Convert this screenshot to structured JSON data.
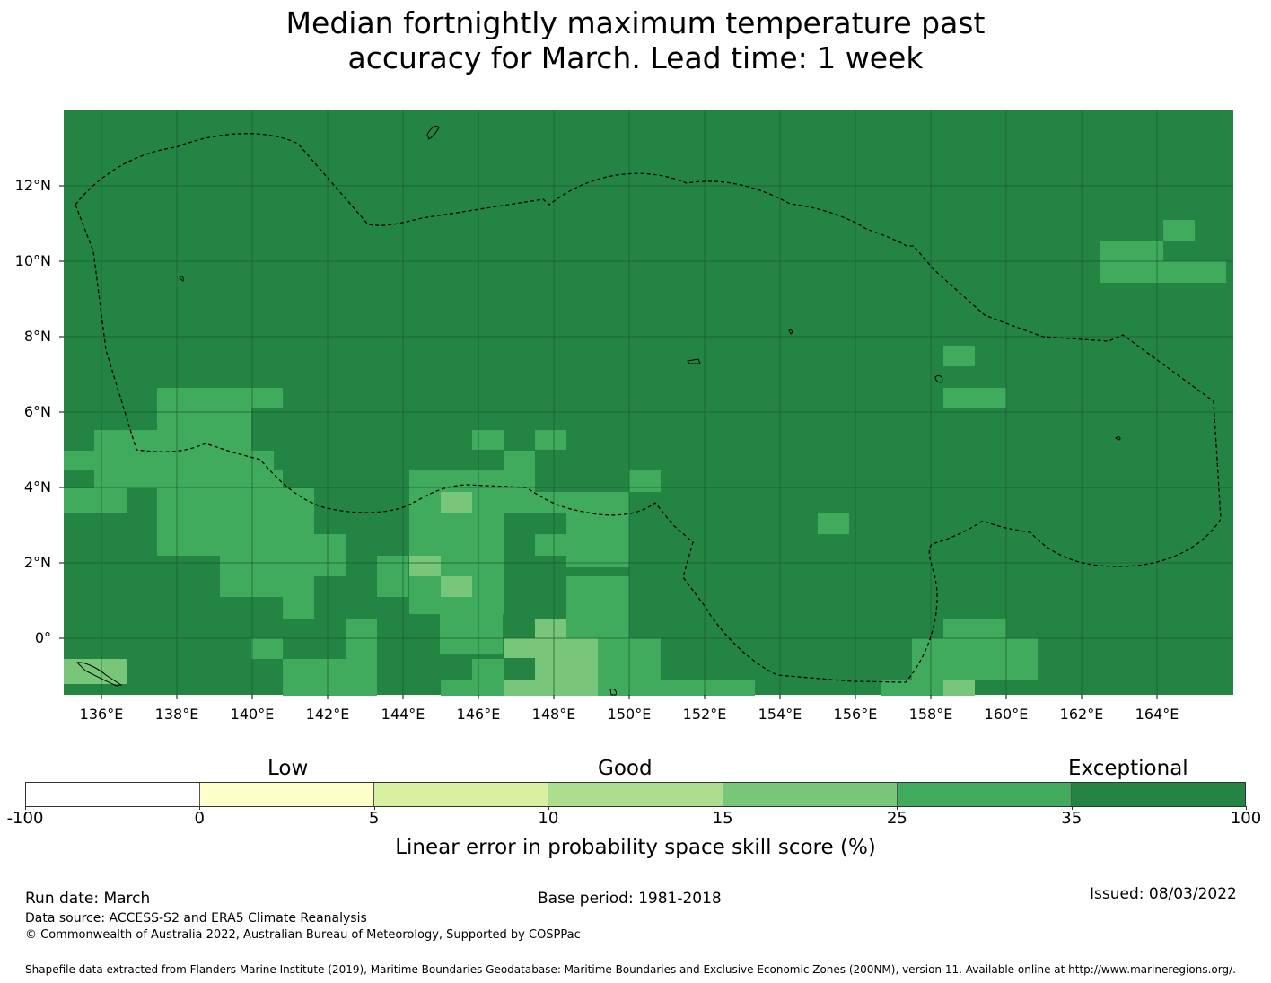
{
  "title": {
    "line1": "Median fortnightly maximum temperature past",
    "line2": "accuracy for March. Lead time: 1 week"
  },
  "map": {
    "lat_labels": [
      "12°N",
      "10°N",
      "8°N",
      "6°N",
      "4°N",
      "2°N",
      "0°"
    ],
    "lon_labels": [
      "136°E",
      "138°E",
      "140°E",
      "142°E",
      "144°E",
      "146°E",
      "148°E",
      "150°E",
      "152°E",
      "154°E",
      "156°E",
      "158°E",
      "160°E",
      "162°E",
      "164°E"
    ],
    "base_color": "#238443",
    "colors": {
      "band_25_35": "#41ab5d",
      "band_15_25": "#78c679",
      "gridline": "#1a5c30",
      "boundary": "#000000"
    }
  },
  "colorbar": {
    "category_labels": [
      "Low",
      "Good",
      "Exceptional"
    ],
    "ticks": [
      "-100",
      "0",
      "5",
      "10",
      "15",
      "25",
      "35",
      "100"
    ],
    "colors": [
      "#ffffff",
      "#ffffcc",
      "#d9f0a3",
      "#addd8e",
      "#78c679",
      "#41ab5d",
      "#238443"
    ],
    "title": "Linear error in probability space skill score (%)"
  },
  "footer": {
    "run_date": "Run date: March",
    "base_period": "Base period: 1981-2018",
    "issued": "Issued: 08/03/2022",
    "data_source": "Data source: ACCESS-S2 and ERA5 Climate Reanalysis",
    "copyright": "© Commonwealth of Australia 2022, Australian Bureau of Meteorology, Supported by COSPPac",
    "shapefile": "Shapefile data extracted from Flanders Marine Institute (2019), Maritime Boundaries Geodatabase: Maritime Boundaries and Exclusive Economic Zones (200NM), version 11. Available online at http://www.marineregions.org/."
  }
}
